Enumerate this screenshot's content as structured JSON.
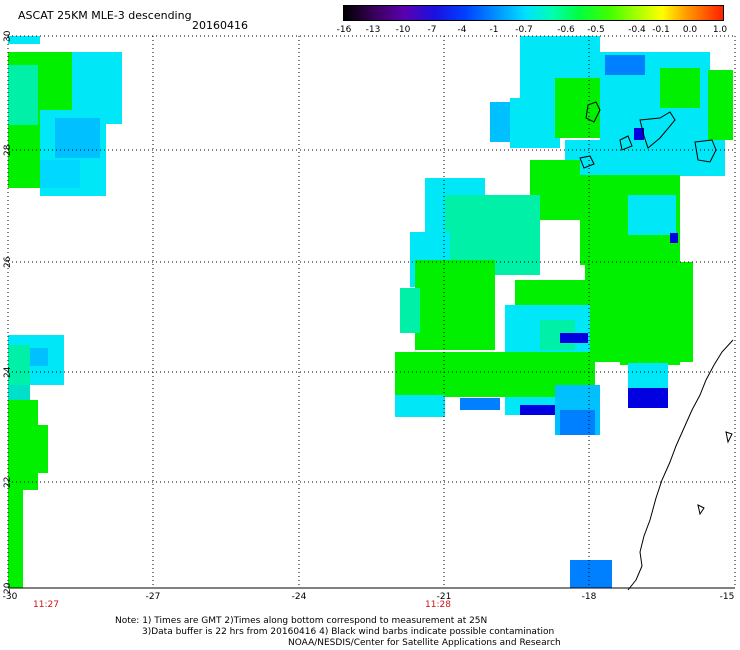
{
  "header": {
    "title": "ASCAT 25KM MLE-3 descending",
    "date": "20160416"
  },
  "colorbar": {
    "labels": [
      "-16",
      "-13",
      "-10",
      "-7",
      "-4",
      "-1",
      "-0.7",
      "-0.6",
      "-0.5",
      "-0.4",
      "-0.1",
      "0.0",
      "1.0"
    ]
  },
  "axes": {
    "lon_labels": [
      "-30",
      "-27",
      "-24",
      "-21",
      "-18",
      "-15"
    ],
    "lat_labels": [
      "30",
      "28",
      "26",
      "24",
      "22",
      "20"
    ],
    "time_labels": [
      "11:27",
      "11:28"
    ]
  },
  "footer": {
    "line1": "Note: 1) Times are GMT 2)Times along bottom correspond to measurement at 25N",
    "line2": "3)Data buffer is 22 hrs from 20160416 4) Black wind barbs indicate possible contamination",
    "line3": "NOAA/NESDIS/Center for Satellite Applications and Research"
  },
  "colors": {
    "green": "#00f000",
    "cyan": "#00e8f8",
    "teal": "#00f0a8",
    "blue": "#0080ff",
    "dark_blue": "#0000e0"
  }
}
